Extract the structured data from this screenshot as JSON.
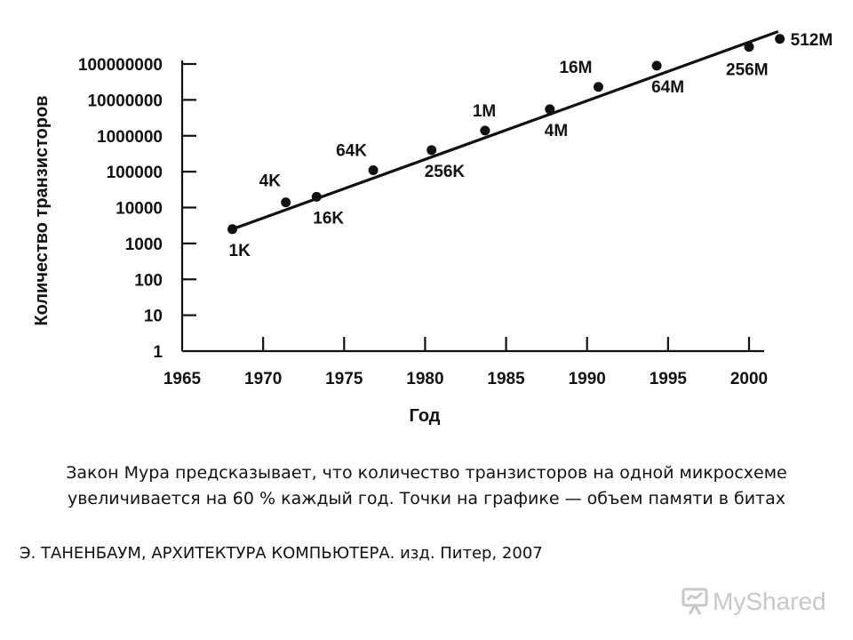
{
  "chart_data": {
    "type": "scatter",
    "title": "",
    "xlabel": "Год",
    "ylabel": "Количество транзисторов",
    "x_ticks": [
      "1965",
      "1970",
      "1975",
      "1980",
      "1985",
      "1990",
      "1995",
      "2000"
    ],
    "xlim": [
      1965,
      2002
    ],
    "y_ticks": [
      "1",
      "10",
      "100",
      "1000",
      "10000",
      "100000",
      "1000000",
      "10000000",
      "100000000"
    ],
    "y_scale": "log",
    "ylim": [
      1,
      1000000000
    ],
    "grid": false,
    "points": [
      {
        "x": 1968.1,
        "y": 2500,
        "label": "1K"
      },
      {
        "x": 1971.4,
        "y": 14000,
        "label": "4K"
      },
      {
        "x": 1973.3,
        "y": 20000,
        "label": "16K"
      },
      {
        "x": 1976.8,
        "y": 110000,
        "label": "64K"
      },
      {
        "x": 1980.4,
        "y": 400000,
        "label": "256K"
      },
      {
        "x": 1983.7,
        "y": 1400000,
        "label": "1M"
      },
      {
        "x": 1987.7,
        "y": 5500000,
        "label": "4M"
      },
      {
        "x": 1990.7,
        "y": 23000000,
        "label": "16M"
      },
      {
        "x": 1994.3,
        "y": 90000000,
        "label": "64M"
      },
      {
        "x": 2000.0,
        "y": 300000000,
        "label": "256M"
      },
      {
        "x": 2001.9,
        "y": 500000000,
        "label": "512M"
      }
    ],
    "trend_line": {
      "x": [
        1968.1,
        2001.8
      ],
      "y": [
        2500,
        800000000
      ]
    }
  },
  "caption": {
    "line1": "Закон Мура предсказывает, что количество транзисторов на одной микросхеме",
    "line2": "увеличивается на 60 % каждый год. Точки на графике — объем памяти в битах"
  },
  "source": "Э. ТАНЕНБАУМ, АРХИТЕКТУРА  КОМПЬЮТЕРА.  изд. Питер, 2007",
  "watermark": {
    "text": "MyShared"
  }
}
